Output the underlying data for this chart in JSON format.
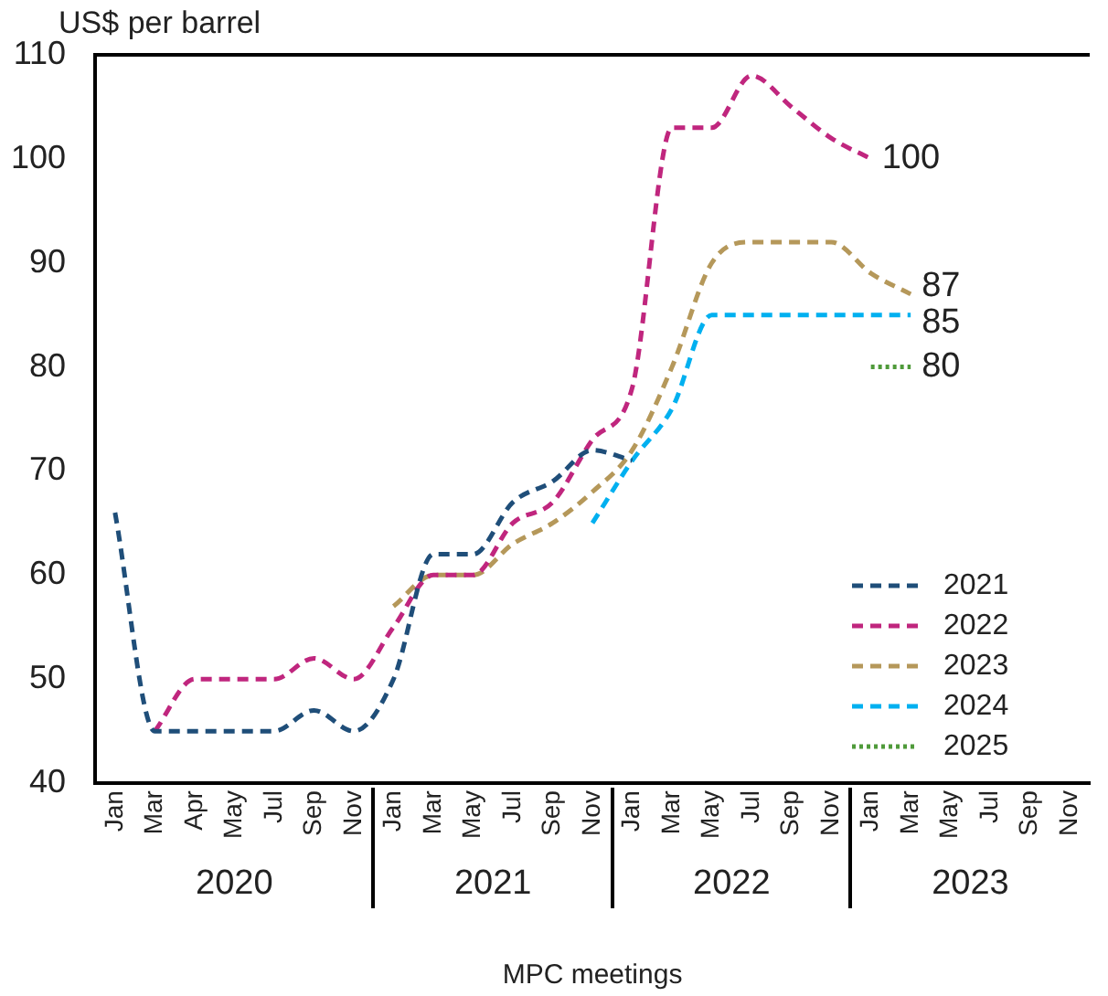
{
  "chart_data": {
    "type": "line",
    "ylabel": "US$ per barrel",
    "xlabel": "MPC meetings",
    "categories": [
      "Jan",
      "Mar",
      "Apr",
      "May",
      "Jul",
      "Sep",
      "Nov",
      "Jan",
      "Mar",
      "May",
      "Jul",
      "Sep",
      "Nov",
      "Jan",
      "Mar",
      "May",
      "Jul",
      "Sep",
      "Nov",
      "Jan",
      "Mar",
      "May",
      "Jul",
      "Sep",
      "Nov"
    ],
    "annotations": [
      "2020",
      "2021",
      "2022",
      "2023"
    ],
    "ylim": [
      40,
      110
    ],
    "yticks": [
      40,
      50,
      60,
      70,
      80,
      90,
      100,
      110
    ],
    "grid": false,
    "legend": "bottom right",
    "marker": "none",
    "series": [
      {
        "name": "2021",
        "color": "#1f4e79",
        "line_style": "dashed",
        "values": [
          66,
          45,
          45,
          45,
          45,
          47,
          45,
          50,
          62,
          62,
          67,
          69,
          72,
          71,
          null,
          null,
          null,
          null,
          null,
          null,
          null,
          null,
          null,
          null,
          null
        ]
      },
      {
        "name": "2022",
        "color": "#c0267e",
        "line_style": "dashed",
        "values": [
          null,
          45,
          50,
          50,
          50,
          52,
          50,
          55,
          60,
          60,
          65,
          67,
          73,
          78,
          103,
          103,
          108,
          105,
          102,
          100,
          null,
          null,
          null,
          null,
          null
        ],
        "value_labels": [
          null,
          null,
          null,
          null,
          null,
          null,
          null,
          null,
          null,
          null,
          null,
          null,
          null,
          null,
          null,
          null,
          null,
          null,
          null,
          "100",
          null,
          null,
          null,
          null,
          null
        ]
      },
      {
        "name": "2023",
        "color": "#b5985a",
        "line_style": "dashed",
        "values": [
          null,
          null,
          null,
          null,
          null,
          null,
          null,
          57,
          60,
          60,
          63,
          65,
          68,
          72,
          80,
          90,
          92,
          92,
          92,
          89,
          87,
          null,
          null,
          null,
          null
        ],
        "value_labels": [
          null,
          null,
          null,
          null,
          null,
          null,
          null,
          null,
          null,
          null,
          null,
          null,
          null,
          null,
          null,
          null,
          null,
          null,
          null,
          null,
          "87",
          null,
          null,
          null,
          null
        ]
      },
      {
        "name": "2024",
        "color": "#00b0f0",
        "line_style": "dashed",
        "values": [
          null,
          null,
          null,
          null,
          null,
          null,
          null,
          null,
          null,
          null,
          null,
          null,
          65,
          71,
          76,
          85,
          85,
          85,
          85,
          85,
          85,
          null,
          null,
          null,
          null
        ],
        "value_labels": [
          null,
          null,
          null,
          null,
          null,
          null,
          null,
          null,
          null,
          null,
          null,
          null,
          null,
          null,
          null,
          null,
          null,
          null,
          null,
          null,
          "85",
          null,
          null,
          null,
          null
        ]
      },
      {
        "name": "2025",
        "color": "#4f9a3a",
        "line_style": "dotted",
        "values": [
          null,
          null,
          null,
          null,
          null,
          null,
          null,
          null,
          null,
          null,
          null,
          null,
          null,
          null,
          null,
          null,
          null,
          null,
          null,
          80,
          80,
          null,
          null,
          null,
          null
        ],
        "value_labels": [
          null,
          null,
          null,
          null,
          null,
          null,
          null,
          null,
          null,
          null,
          null,
          null,
          null,
          null,
          null,
          null,
          null,
          null,
          null,
          null,
          "80",
          null,
          null,
          null,
          null
        ]
      }
    ]
  }
}
